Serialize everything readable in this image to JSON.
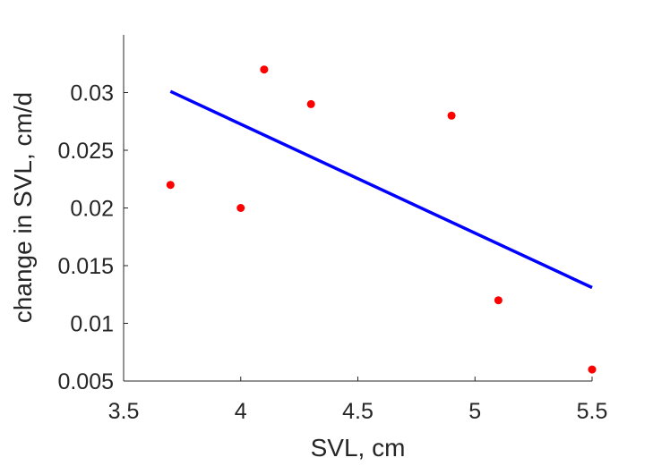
{
  "chart_data": {
    "type": "scatter",
    "xlabel": "SVL, cm",
    "ylabel": "change in SVL, cm/d",
    "xlim": [
      3.5,
      5.5
    ],
    "ylim": [
      0.005,
      0.035
    ],
    "xticks": [
      3.5,
      4,
      4.5,
      5,
      5.5
    ],
    "xtick_labels": [
      "3.5",
      "4",
      "4.5",
      "5",
      "5.5"
    ],
    "yticks": [
      0.005,
      0.01,
      0.015,
      0.02,
      0.025,
      0.03
    ],
    "ytick_labels": [
      "0.005",
      "0.01",
      "0.015",
      "0.02",
      "0.025",
      "0.03"
    ],
    "grid": false,
    "series": [
      {
        "kind": "points",
        "color": "#ff0000",
        "x": [
          3.7,
          4.0,
          4.1,
          4.3,
          4.9,
          5.1,
          5.5
        ],
        "y": [
          0.022,
          0.02,
          0.032,
          0.029,
          0.028,
          0.012,
          0.006
        ]
      },
      {
        "kind": "fit-line",
        "color": "#0000ff",
        "x": [
          3.7,
          5.5
        ],
        "y": [
          0.0301,
          0.0131
        ]
      }
    ]
  }
}
